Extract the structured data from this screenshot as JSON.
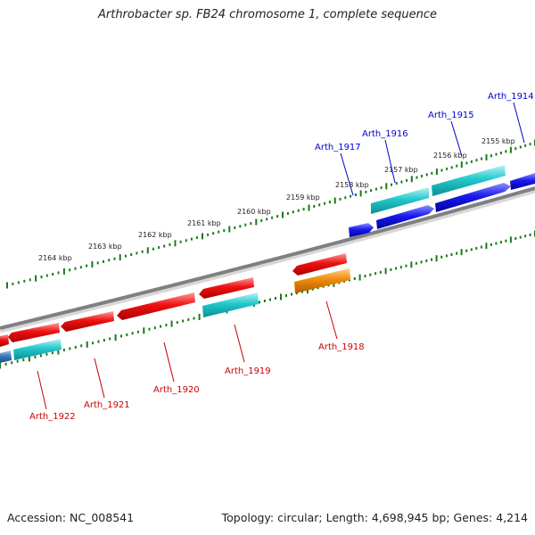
{
  "title": "Arthrobacter sp. FB24 chromosome 1, complete sequence",
  "footer": {
    "accession": "Accession: NC_008541",
    "summary": "Topology: circular; Length: 4,698,945 bp; Genes: 4,214"
  },
  "colors": {
    "forward_label": "#0000cc",
    "reverse_label": "#cc0000",
    "backbone": "#808080",
    "tick": "#1a7a1a",
    "red": "#ee1111",
    "blue": "#1a1aee",
    "cyan": "#22c8cc",
    "orange": "#f08a0a",
    "steel": "#3a78b8"
  },
  "scale_labels": [
    "2164 kbp",
    "2163 kbp",
    "2162 kbp",
    "2161 kbp",
    "2160 kbp",
    "2159 kbp",
    "2158 kbp",
    "2157 kbp",
    "2156 kbp",
    "2155 kbp"
  ],
  "forward_genes": [
    {
      "label": "Arth_1917",
      "color": "blue"
    },
    {
      "label": "Arth_1916",
      "color": "blue"
    },
    {
      "label": "Arth_1915",
      "color": "blue"
    },
    {
      "label": "Arth_1914",
      "color": "blue"
    }
  ],
  "reverse_genes": [
    {
      "label": "Arth_1922",
      "color": "red"
    },
    {
      "label": "Arth_1921",
      "color": "red"
    },
    {
      "label": "Arth_1920",
      "color": "red"
    },
    {
      "label": "Arth_1919",
      "color": "red"
    },
    {
      "label": "Arth_1918",
      "color": "red"
    }
  ]
}
